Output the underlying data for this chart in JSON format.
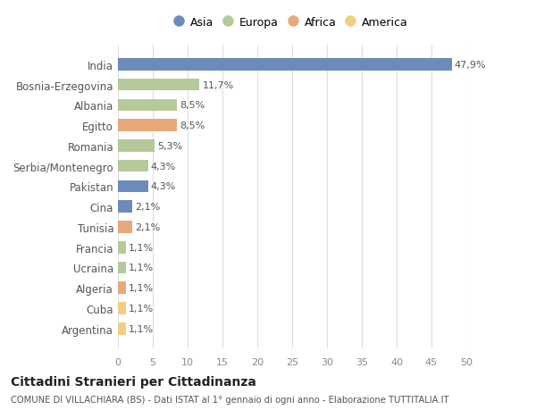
{
  "categories": [
    "India",
    "Bosnia-Erzegovina",
    "Albania",
    "Egitto",
    "Romania",
    "Serbia/Montenegro",
    "Pakistan",
    "Cina",
    "Tunisia",
    "Francia",
    "Ucraina",
    "Algeria",
    "Cuba",
    "Argentina"
  ],
  "values": [
    47.9,
    11.7,
    8.5,
    8.5,
    5.3,
    4.3,
    4.3,
    2.1,
    2.1,
    1.1,
    1.1,
    1.1,
    1.1,
    1.1
  ],
  "labels": [
    "47,9%",
    "11,7%",
    "8,5%",
    "8,5%",
    "5,3%",
    "4,3%",
    "4,3%",
    "2,1%",
    "2,1%",
    "1,1%",
    "1,1%",
    "1,1%",
    "1,1%",
    "1,1%"
  ],
  "continents": [
    "Asia",
    "Europa",
    "Europa",
    "Africa",
    "Europa",
    "Europa",
    "Asia",
    "Asia",
    "Africa",
    "Europa",
    "Europa",
    "Africa",
    "America",
    "America"
  ],
  "colors": {
    "Asia": "#6b8cba",
    "Europa": "#b5c99a",
    "Africa": "#e8a87c",
    "America": "#f0d080"
  },
  "legend_order": [
    "Asia",
    "Europa",
    "Africa",
    "America"
  ],
  "title": "Cittadini Stranieri per Cittadinanza",
  "subtitle": "COMUNE DI VILLACHIARA (BS) - Dati ISTAT al 1° gennaio di ogni anno - Elaborazione TUTTITALIA.IT",
  "xlim": [
    0,
    50
  ],
  "xticks": [
    0,
    5,
    10,
    15,
    20,
    25,
    30,
    35,
    40,
    45,
    50
  ],
  "bg_color": "#ffffff",
  "grid_color": "#dddddd",
  "bar_height": 0.6
}
